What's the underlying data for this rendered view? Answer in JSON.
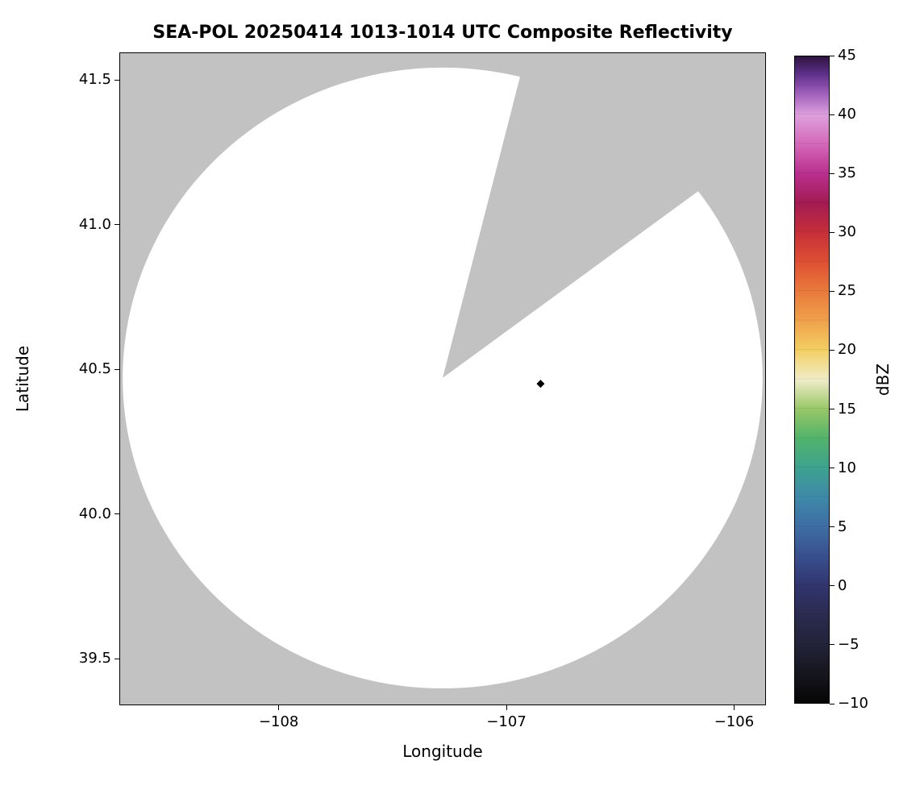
{
  "figure": {
    "title": "SEA-POL 20250414 1013-1014 UTC Composite Reflectivity",
    "xlabel": "Longitude",
    "ylabel": "Latitude",
    "colorbar_label": "dBZ"
  },
  "chart_data": {
    "type": "heatmap",
    "subtype": "radar-composite-reflectivity-ppi",
    "title": "SEA-POL 20250414 1013-1014 UTC Composite Reflectivity",
    "xlabel": "Longitude",
    "ylabel": "Latitude",
    "xlim": [
      -108.7,
      -105.86
    ],
    "ylim": [
      39.339,
      41.595
    ],
    "x_tick_values": [
      -108,
      -107,
      -106
    ],
    "x_tick_labels": [
      "−108",
      "−107",
      "−106"
    ],
    "y_tick_values": [
      41.5,
      41.0,
      40.5,
      40.0,
      39.5
    ],
    "y_tick_labels": [
      "41.5",
      "41.0",
      "40.5",
      "40.0",
      "39.5"
    ],
    "grid": false,
    "background_color": "#c2c2c2",
    "scanned_area_color": "#ffffff",
    "radar": {
      "center_lon": -107.28,
      "center_lat": 40.47,
      "range_km": 119,
      "missing_sector_azimuth_start_deg": 14,
      "missing_sector_azimuth_end_deg": 53,
      "note": "white disc = scanned area (no echoes above threshold); gray wedge = unsampled sector"
    },
    "marker": {
      "shape": "diamond",
      "color": "#000000",
      "lon": -106.85,
      "lat": 40.45
    },
    "colorbar": {
      "label": "dBZ",
      "min": -10,
      "max": 45,
      "orientation": "vertical",
      "position": "right",
      "tick_values": [
        45,
        40,
        35,
        30,
        25,
        20,
        15,
        10,
        5,
        0,
        -5,
        -10
      ],
      "tick_labels": [
        "45",
        "40",
        "35",
        "30",
        "25",
        "20",
        "15",
        "10",
        "5",
        "0",
        "−5",
        "−10"
      ],
      "stops": [
        {
          "value": -10,
          "color": "#060606"
        },
        {
          "value": -7.5,
          "color": "#16161e"
        },
        {
          "value": -5,
          "color": "#23233a"
        },
        {
          "value": -2.5,
          "color": "#2b2b50"
        },
        {
          "value": 0,
          "color": "#31356e"
        },
        {
          "value": 2.5,
          "color": "#39508e"
        },
        {
          "value": 5,
          "color": "#3e6da4"
        },
        {
          "value": 7.5,
          "color": "#3e89a8"
        },
        {
          "value": 10,
          "color": "#3da28f"
        },
        {
          "value": 12.5,
          "color": "#52b36a"
        },
        {
          "value": 15,
          "color": "#98c767"
        },
        {
          "value": 17.5,
          "color": "#f0ecc8"
        },
        {
          "value": 20,
          "color": "#f3cf62"
        },
        {
          "value": 22.5,
          "color": "#f0a14b"
        },
        {
          "value": 25,
          "color": "#e97a3c"
        },
        {
          "value": 27.5,
          "color": "#df5033"
        },
        {
          "value": 30,
          "color": "#c62f39"
        },
        {
          "value": 32.5,
          "color": "#a31b52"
        },
        {
          "value": 35,
          "color": "#b82f8d"
        },
        {
          "value": 37.5,
          "color": "#d467b8"
        },
        {
          "value": 40,
          "color": "#dda0dd"
        },
        {
          "value": 42,
          "color": "#9a5ab8"
        },
        {
          "value": 43.5,
          "color": "#5d3089"
        },
        {
          "value": 45,
          "color": "#2e1440"
        }
      ]
    }
  }
}
